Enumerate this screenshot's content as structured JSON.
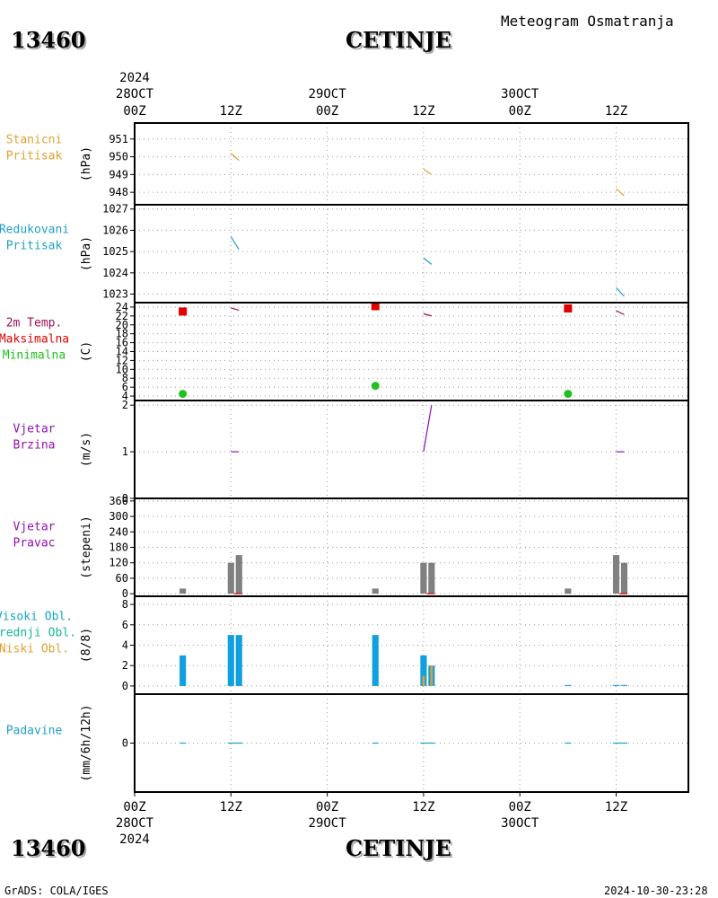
{
  "header": {
    "station_id": "13460",
    "station_name": "CETINJE",
    "subtitle": "Meteogram Osmatranja"
  },
  "footer": {
    "credits": "GrADS: COLA/IGES",
    "timestamp": "2024-10-30-23:28"
  },
  "chart_data": {
    "type": "meteogram",
    "time_axis": {
      "top_year": "2024",
      "bottom_year": "2024",
      "hours_range": [
        0,
        69
      ],
      "ticks": [
        {
          "h": 0,
          "hour": "00Z",
          "date": "28OCT"
        },
        {
          "h": 12,
          "hour": "12Z",
          "date": ""
        },
        {
          "h": 24,
          "hour": "00Z",
          "date": "29OCT"
        },
        {
          "h": 36,
          "hour": "12Z",
          "date": ""
        },
        {
          "h": 48,
          "hour": "00Z",
          "date": "30OCT"
        },
        {
          "h": 60,
          "hour": "12Z",
          "date": ""
        }
      ]
    },
    "panels": [
      {
        "id": "station_pressure",
        "labels": [
          {
            "text": "Stanicni",
            "color": "#e0a030"
          },
          {
            "text": "Pritisak",
            "color": "#e0a030"
          }
        ],
        "unit": "(hPa)",
        "ylim": [
          947.3,
          951.9
        ],
        "yticks": [
          948,
          949,
          950,
          951
        ],
        "series": [
          {
            "type": "segments",
            "color": "#e0a030",
            "segments": [
              [
                [
                  12.0,
                  950.2
                ],
                [
                  13.0,
                  949.8
                ]
              ],
              [
                [
                  36.0,
                  949.3
                ],
                [
                  37.0,
                  949.0
                ]
              ],
              [
                [
                  60.0,
                  948.2
                ],
                [
                  61.0,
                  947.8
                ]
              ]
            ]
          }
        ]
      },
      {
        "id": "reduced_pressure",
        "labels": [
          {
            "text": "Redukovani",
            "color": "#20a0c8"
          },
          {
            "text": "Pritisak",
            "color": "#20a0c8"
          }
        ],
        "unit": "(hPa)",
        "ylim": [
          1022.6,
          1027.2
        ],
        "yticks": [
          1023,
          1024,
          1025,
          1026,
          1027
        ],
        "series": [
          {
            "type": "segments",
            "color": "#20a0c8",
            "segments": [
              [
                [
                  12.0,
                  1025.7
                ],
                [
                  13.0,
                  1025.1
                ]
              ],
              [
                [
                  36.0,
                  1024.7
                ],
                [
                  37.0,
                  1024.4
                ]
              ],
              [
                [
                  60.0,
                  1023.3
                ],
                [
                  61.0,
                  1022.9
                ]
              ]
            ]
          }
        ]
      },
      {
        "id": "temperature",
        "labels": [
          {
            "text": "2m Temp.",
            "color": "#a0105a"
          },
          {
            "text": "Maksimalna",
            "color": "#e00000"
          },
          {
            "text": "Minimalna",
            "color": "#20c020"
          }
        ],
        "unit": "(C)",
        "ylim": [
          3,
          25
        ],
        "yticks": [
          4,
          6,
          8,
          10,
          12,
          14,
          16,
          18,
          20,
          22,
          24
        ],
        "series": [
          {
            "name": "Maksimalna",
            "type": "squares",
            "color": "#e00000",
            "points": [
              [
                6,
                23.0
              ],
              [
                30,
                24.2
              ],
              [
                54,
                23.7
              ]
            ]
          },
          {
            "name": "Minimalna",
            "type": "circles",
            "color": "#20c020",
            "points": [
              [
                6,
                4.5
              ],
              [
                30,
                6.3
              ],
              [
                54,
                4.5
              ]
            ]
          },
          {
            "name": "2m Temp.",
            "type": "segments",
            "color": "#a0105a",
            "segments": [
              [
                [
                  12.0,
                  23.8
                ],
                [
                  13.0,
                  23.3
                ]
              ],
              [
                [
                  36.0,
                  22.5
                ],
                [
                  37.0,
                  22.0
                ]
              ],
              [
                [
                  60.0,
                  23.2
                ],
                [
                  61.0,
                  22.3
                ]
              ]
            ]
          }
        ]
      },
      {
        "id": "wind_speed",
        "labels": [
          {
            "text": "Vjetar",
            "color": "#9010b0"
          },
          {
            "text": "Brzina",
            "color": "#9010b0"
          }
        ],
        "unit": "(m/s)",
        "ylim": [
          0,
          2.1
        ],
        "yticks": [
          0,
          1,
          2
        ],
        "series": [
          {
            "type": "segments",
            "color": "#9010b0",
            "segments": [
              [
                [
                  12.0,
                  1.0
                ],
                [
                  13.0,
                  1.0
                ]
              ],
              [
                [
                  36.0,
                  1.0
                ],
                [
                  37.0,
                  2.0
                ]
              ],
              [
                [
                  60.0,
                  1.0
                ],
                [
                  61.0,
                  1.0
                ]
              ]
            ]
          }
        ]
      },
      {
        "id": "wind_direction",
        "labels": [
          {
            "text": "Vjetar",
            "color": "#9010b0"
          },
          {
            "text": "Pravac",
            "color": "#9010b0"
          }
        ],
        "unit": "(stepeni)",
        "ylim": [
          -10,
          370
        ],
        "yticks": [
          0,
          60,
          120,
          180,
          240,
          300,
          360
        ],
        "series": [
          {
            "type": "bars",
            "color": "#808080",
            "width_h": 0.8,
            "bars": [
              [
                6,
                20
              ],
              [
                12,
                120
              ],
              [
                13,
                150
              ],
              [
                30,
                20
              ],
              [
                36,
                120
              ],
              [
                37,
                120
              ],
              [
                54,
                20
              ],
              [
                60,
                150
              ],
              [
                61,
                120
              ]
            ]
          },
          {
            "type": "segments",
            "color": "#e00000",
            "segments": [
              [
                [
                  12.4,
                  0
                ],
                [
                  13.4,
                  0
                ]
              ],
              [
                [
                  36.4,
                  0
                ],
                [
                  37.4,
                  0
                ]
              ],
              [
                [
                  60.4,
                  0
                ],
                [
                  61.4,
                  0
                ]
              ]
            ]
          }
        ]
      },
      {
        "id": "clouds",
        "labels": [
          {
            "text": "Visoki Obl.",
            "color": "#10a8c8"
          },
          {
            "text": "Srednji Obl.",
            "color": "#10b898"
          },
          {
            "text": "Niski Obl.",
            "color": "#e0a030"
          }
        ],
        "unit": "(8/8)",
        "ylim": [
          -0.8,
          8.8
        ],
        "yticks": [
          0,
          2,
          4,
          6,
          8
        ],
        "series": [
          {
            "name": "Visoki Obl.",
            "type": "bars",
            "color": "#10a0e0",
            "width_h": 0.8,
            "bars": [
              [
                6,
                3
              ],
              [
                12,
                5
              ],
              [
                13,
                5
              ],
              [
                30,
                5
              ],
              [
                36,
                3
              ],
              [
                37,
                2
              ],
              [
                54,
                0.1
              ],
              [
                60,
                0.1
              ],
              [
                61,
                0.1
              ]
            ]
          },
          {
            "name": "Niski Obl.",
            "type": "bars",
            "color": "#e0a030",
            "width_h": 0.3,
            "bars": [
              [
                36,
                1
              ],
              [
                37,
                2
              ]
            ]
          }
        ]
      },
      {
        "id": "precipitation",
        "labels": [
          {
            "text": "Padavine",
            "color": "#20a0c8"
          }
        ],
        "unit": "(mm/6h/12h)",
        "ylim": [
          -5,
          5
        ],
        "yticks": [
          0
        ],
        "series": [
          {
            "type": "segments",
            "color": "#20a0c8",
            "segments": [
              [
                [
                  5.6,
                  0
                ],
                [
                  6.4,
                  0
                ]
              ],
              [
                [
                  11.6,
                  0
                ],
                [
                  13.4,
                  0
                ]
              ],
              [
                [
                  29.6,
                  0
                ],
                [
                  30.4,
                  0
                ]
              ],
              [
                [
                  35.6,
                  0
                ],
                [
                  37.4,
                  0
                ]
              ],
              [
                [
                  53.6,
                  0
                ],
                [
                  54.4,
                  0
                ]
              ],
              [
                [
                  59.6,
                  0
                ],
                [
                  61.4,
                  0
                ]
              ]
            ]
          }
        ]
      }
    ]
  }
}
